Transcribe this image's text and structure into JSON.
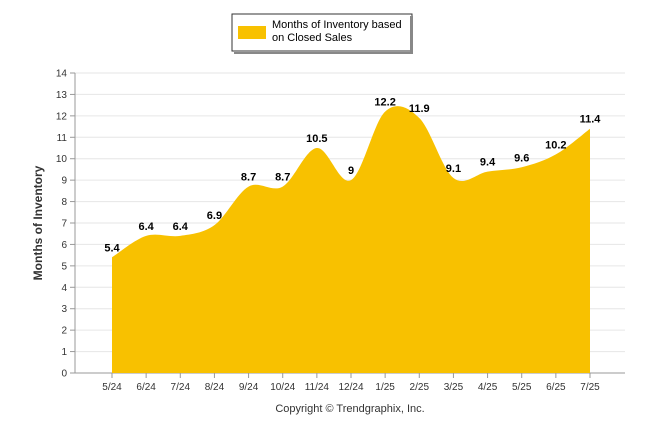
{
  "chart_data": {
    "type": "area",
    "categories": [
      "5/24",
      "6/24",
      "7/24",
      "8/24",
      "9/24",
      "10/24",
      "11/24",
      "12/24",
      "1/25",
      "2/25",
      "3/25",
      "4/25",
      "5/25",
      "6/25",
      "7/25"
    ],
    "series": [
      {
        "name": "Months of Inventory based on Closed Sales",
        "values": [
          5.4,
          6.4,
          6.4,
          6.9,
          8.7,
          8.7,
          10.5,
          9,
          12.2,
          11.9,
          9.1,
          9.4,
          9.6,
          10.2,
          11.4
        ],
        "labels": [
          "5.4",
          "6.4",
          "6.4",
          "6.9",
          "8.7",
          "8.7",
          "10.5",
          "9",
          "12.2",
          "11.9",
          "9.1",
          "9.4",
          "9.6",
          "10.2",
          "11.4"
        ],
        "color": "#F8C100"
      }
    ],
    "ylabel": "Months of Inventory",
    "xlabel": "",
    "ylim": [
      0,
      14
    ],
    "yticks": [
      "0",
      "1",
      "2",
      "3",
      "4",
      "5",
      "6",
      "7",
      "8",
      "9",
      "10",
      "11",
      "12",
      "13",
      "14"
    ],
    "grid": true,
    "legend_position": "top-center",
    "legend_lines": [
      "Months of Inventory based",
      "on Closed Sales"
    ],
    "credit": "Copyright © Trendgraphix, Inc."
  },
  "colors": {
    "area": "#F8C100",
    "grid": "#e6e6e6",
    "axis": "#999999"
  }
}
